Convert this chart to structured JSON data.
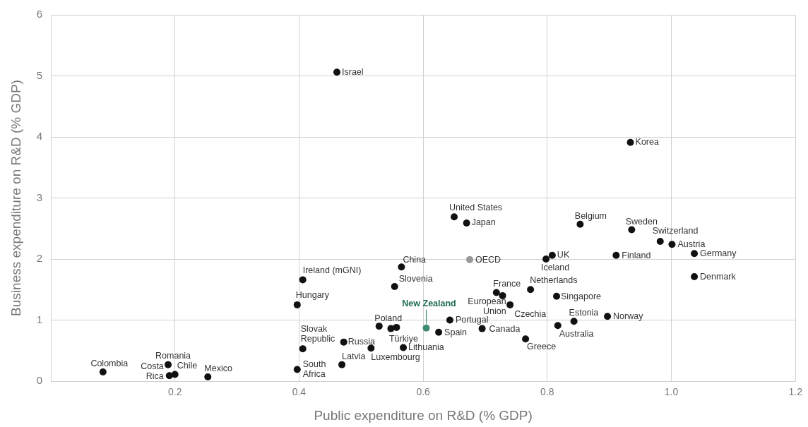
{
  "chart_data": {
    "type": "scatter",
    "xlabel": "Public expenditure on R&D (% GDP)",
    "ylabel": "Business expenditure on R&D (% GDP)",
    "x": [
      0.084,
      0.189,
      0.191,
      0.2,
      0.253,
      0.406,
      0.397,
      0.406,
      0.397,
      0.461,
      0.469,
      0.472,
      0.516,
      0.568,
      0.529,
      0.548,
      0.565,
      0.554,
      0.605,
      0.643,
      0.625,
      0.65,
      0.67,
      0.675,
      0.695,
      0.718,
      0.728,
      0.74,
      0.773,
      0.798,
      0.808,
      0.815,
      0.765,
      0.817,
      0.843,
      0.853,
      0.897,
      0.911,
      0.934,
      0.936,
      0.982,
      1.001,
      1.037,
      1.037,
      0.557
    ],
    "values": [
      0.15,
      0.27,
      0.09,
      0.11,
      0.07,
      1.66,
      1.25,
      0.53,
      0.19,
      5.06,
      0.27,
      0.64,
      0.54,
      0.55,
      0.9,
      0.86,
      1.87,
      1.55,
      0.87,
      1.0,
      0.8,
      2.69,
      2.59,
      1.99,
      0.86,
      1.45,
      1.4,
      1.25,
      1.5,
      2.0,
      2.06,
      1.39,
      0.69,
      0.91,
      0.98,
      2.57,
      1.06,
      2.06,
      3.91,
      2.48,
      2.29,
      2.24,
      2.09,
      1.71,
      0.88
    ],
    "colors": [
      "#111111",
      "#111111",
      "#111111",
      "#111111",
      "#111111",
      "#111111",
      "#111111",
      "#111111",
      "#111111",
      "#111111",
      "#111111",
      "#111111",
      "#111111",
      "#111111",
      "#111111",
      "#111111",
      "#111111",
      "#111111",
      "#3d8b6e",
      "#111111",
      "#111111",
      "#111111",
      "#111111",
      "#999999",
      "#111111",
      "#111111",
      "#111111",
      "#111111",
      "#111111",
      "#111111",
      "#111111",
      "#111111",
      "#111111",
      "#111111",
      "#111111",
      "#111111",
      "#111111",
      "#111111",
      "#111111",
      "#111111",
      "#111111",
      "#111111",
      "#111111",
      "#111111",
      "#111111"
    ],
    "annotations": [
      {
        "text": "Colombia",
        "x": 0.084,
        "y": 0.15
      },
      {
        "text": "Romania",
        "x": 0.189,
        "y": 0.27
      },
      {
        "text": "Costa\nRica",
        "x": 0.191,
        "y": 0.09
      },
      {
        "text": "Chile",
        "x": 0.2,
        "y": 0.11
      },
      {
        "text": "Mexico",
        "x": 0.253,
        "y": 0.07
      },
      {
        "text": "Ireland (mGNI)",
        "x": 0.406,
        "y": 1.66
      },
      {
        "text": "Hungary",
        "x": 0.397,
        "y": 1.25
      },
      {
        "text": "Slovak\nRepublic",
        "x": 0.406,
        "y": 0.53
      },
      {
        "text": "South\nAfrica",
        "x": 0.397,
        "y": 0.19
      },
      {
        "text": "Israel",
        "x": 0.461,
        "y": 5.06
      },
      {
        "text": "Latvia",
        "x": 0.469,
        "y": 0.27
      },
      {
        "text": "Russia",
        "x": 0.472,
        "y": 0.64
      },
      {
        "text": "Luxembourg",
        "x": 0.516,
        "y": 0.54
      },
      {
        "text": "Lithuania",
        "x": 0.568,
        "y": 0.55
      },
      {
        "text": "Poland",
        "x": 0.529,
        "y": 0.9
      },
      {
        "text": "Türkiye",
        "x": 0.548,
        "y": 0.86
      },
      {
        "text": "China",
        "x": 0.565,
        "y": 1.87
      },
      {
        "text": "Slovenia",
        "x": 0.554,
        "y": 1.55
      },
      {
        "text": "New Zealand",
        "x": 0.605,
        "y": 0.87
      },
      {
        "text": "Portugal",
        "x": 0.643,
        "y": 1.0
      },
      {
        "text": "Spain",
        "x": 0.625,
        "y": 0.8
      },
      {
        "text": "United States",
        "x": 0.65,
        "y": 2.69
      },
      {
        "text": "Japan",
        "x": 0.67,
        "y": 2.59
      },
      {
        "text": "OECD",
        "x": 0.675,
        "y": 1.99
      },
      {
        "text": "Canada",
        "x": 0.695,
        "y": 0.86
      },
      {
        "text": "France",
        "x": 0.718,
        "y": 1.45
      },
      {
        "text": "European\nUnion",
        "x": 0.728,
        "y": 1.4
      },
      {
        "text": "Czechia",
        "x": 0.74,
        "y": 1.25
      },
      {
        "text": "Netherlands",
        "x": 0.773,
        "y": 1.5
      },
      {
        "text": "Iceland",
        "x": 0.798,
        "y": 2.0
      },
      {
        "text": "UK",
        "x": 0.808,
        "y": 2.06
      },
      {
        "text": "Singapore",
        "x": 0.815,
        "y": 1.39
      },
      {
        "text": "Greece",
        "x": 0.765,
        "y": 0.69
      },
      {
        "text": "Australia",
        "x": 0.817,
        "y": 0.91
      },
      {
        "text": "Estonia",
        "x": 0.843,
        "y": 0.98
      },
      {
        "text": "Belgium",
        "x": 0.853,
        "y": 2.57
      },
      {
        "text": "Norway",
        "x": 0.897,
        "y": 1.06
      },
      {
        "text": "Finland",
        "x": 0.911,
        "y": 2.06
      },
      {
        "text": "Korea",
        "x": 0.934,
        "y": 3.91
      },
      {
        "text": "Sweden",
        "x": 0.936,
        "y": 2.48
      },
      {
        "text": "Switzerland",
        "x": 0.982,
        "y": 2.29
      },
      {
        "text": "Austria",
        "x": 1.001,
        "y": 2.24
      },
      {
        "text": "Germany",
        "x": 1.037,
        "y": 2.09
      },
      {
        "text": "Denmark",
        "x": 1.037,
        "y": 1.71
      }
    ],
    "xlim": [
      0,
      1.2
    ],
    "xticks": [
      0.2,
      0.4,
      0.6,
      0.8,
      {
        "value": 1,
        "label": "1.0"
      },
      1.2
    ],
    "ylim": [
      0,
      6
    ],
    "yticks": [
      0,
      1,
      2,
      3,
      4,
      5,
      6
    ],
    "grid": true,
    "legend": false,
    "marker": "circle"
  }
}
